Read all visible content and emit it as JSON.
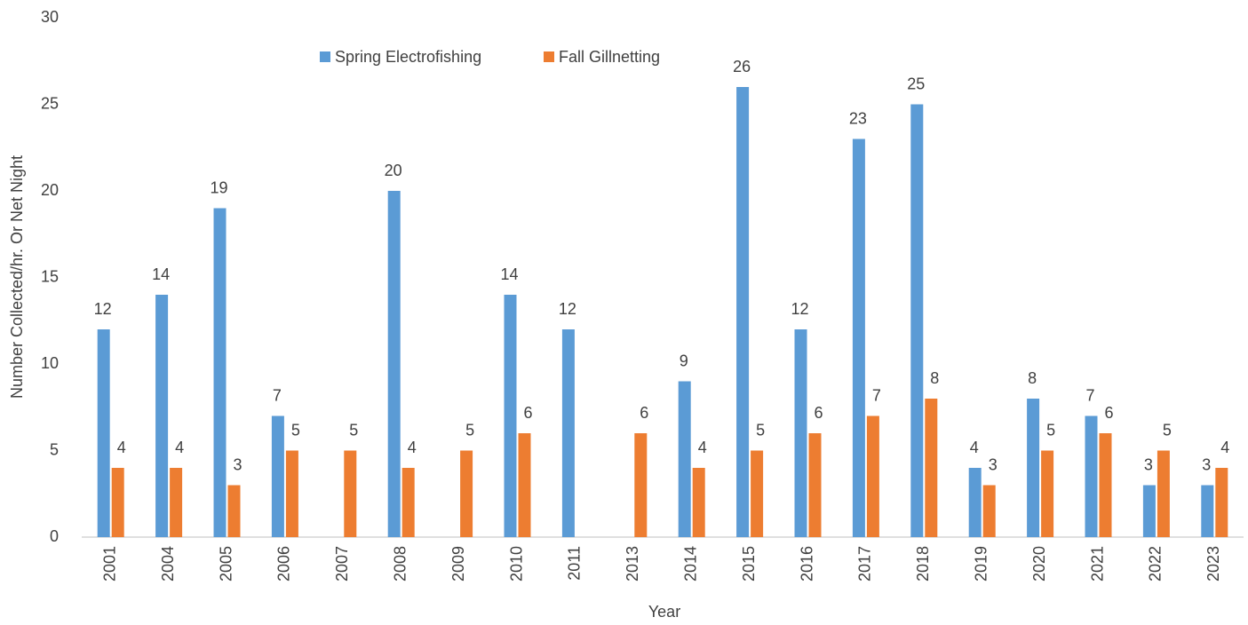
{
  "chart_data": {
    "type": "bar",
    "x_label": "Year",
    "y_label": "Number Collected/hr.  Or Net Night",
    "categories": [
      "2001",
      "2004",
      "2005",
      "2006",
      "2007",
      "2008",
      "2009",
      "2010",
      "2011",
      "2013",
      "2014",
      "2015",
      "2016",
      "2017",
      "2018",
      "2019",
      "2020",
      "2021",
      "2022",
      "2023"
    ],
    "series": [
      {
        "name": "Spring Electrofishing",
        "color": "#5b9bd5",
        "values": [
          12,
          14,
          19,
          7,
          null,
          20,
          null,
          14,
          12,
          null,
          9,
          26,
          12,
          23,
          25,
          4,
          8,
          7,
          3,
          3
        ]
      },
      {
        "name": "Fall Gillnetting",
        "color": "#ed7d31",
        "values": [
          4,
          4,
          3,
          5,
          5,
          4,
          5,
          6,
          null,
          6,
          4,
          5,
          6,
          7,
          8,
          3,
          5,
          6,
          5,
          4
        ]
      }
    ],
    "ylim": [
      0,
      30
    ],
    "yticks": [
      0,
      5,
      10,
      15,
      20,
      25,
      30
    ],
    "grid": false,
    "legend": "top"
  }
}
